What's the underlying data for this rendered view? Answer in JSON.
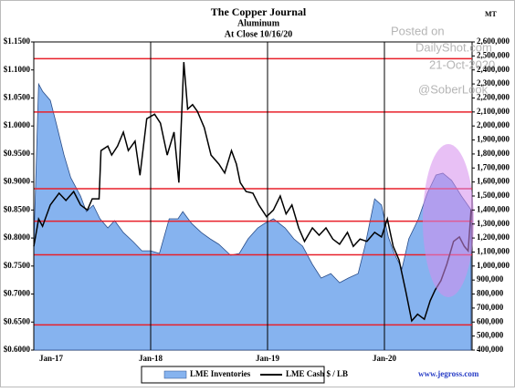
{
  "chart_data": {
    "type": "line",
    "title": "The Copper Journal",
    "subtitle": "Aluminum",
    "date_note": "At Close 10/16/20",
    "y2_label": "MT",
    "annotations": [
      "Posted on",
      "DailyShot.com",
      "21-Oct-2020",
      "@SoberLook",
      "www.jegross.com"
    ],
    "xlim": [
      0,
      45
    ],
    "xticks": [
      {
        "value": 0,
        "label": "Jan-17"
      },
      {
        "value": 12,
        "label": "Jan-18"
      },
      {
        "value": 24,
        "label": "Jan-19"
      },
      {
        "value": 36,
        "label": "Jan-20"
      }
    ],
    "ylim": [
      0.6,
      1.15
    ],
    "yticks": [
      {
        "value": 0.6,
        "label": "$0.6000"
      },
      {
        "value": 0.65,
        "label": "$0.6500"
      },
      {
        "value": 0.7,
        "label": "$0.7000"
      },
      {
        "value": 0.75,
        "label": "$0.7500"
      },
      {
        "value": 0.8,
        "label": "$0.8000"
      },
      {
        "value": 0.85,
        "label": "$0.8500"
      },
      {
        "value": 0.9,
        "label": "$0.9000"
      },
      {
        "value": 0.95,
        "label": "$0.9500"
      },
      {
        "value": 1.0,
        "label": "$1.0000"
      },
      {
        "value": 1.05,
        "label": "$1.0500"
      },
      {
        "value": 1.1,
        "label": "$1.1000"
      },
      {
        "value": 1.15,
        "label": "$1.1500"
      }
    ],
    "y2lim": [
      400000,
      2600000
    ],
    "y2ticks": [
      {
        "value": 400000,
        "label": "400,000"
      },
      {
        "value": 500000,
        "label": "500,000"
      },
      {
        "value": 600000,
        "label": "600,000"
      },
      {
        "value": 700000,
        "label": "700,000"
      },
      {
        "value": 800000,
        "label": "800,000"
      },
      {
        "value": 900000,
        "label": "900,000"
      },
      {
        "value": 1000000,
        "label": "1,000,000"
      },
      {
        "value": 1100000,
        "label": "1,100,000"
      },
      {
        "value": 1200000,
        "label": "1,200,000"
      },
      {
        "value": 1300000,
        "label": "1,300,000"
      },
      {
        "value": 1400000,
        "label": "1,400,000"
      },
      {
        "value": 1500000,
        "label": "1,500,000"
      },
      {
        "value": 1600000,
        "label": "1,600,000"
      },
      {
        "value": 1700000,
        "label": "1,700,000"
      },
      {
        "value": 1800000,
        "label": "1,800,000"
      },
      {
        "value": 1900000,
        "label": "1,900,000"
      },
      {
        "value": 2000000,
        "label": "2,000,000"
      },
      {
        "value": 2100000,
        "label": "2,100,000"
      },
      {
        "value": 2200000,
        "label": "2,200,000"
      },
      {
        "value": 2300000,
        "label": "2,300,000"
      },
      {
        "value": 2400000,
        "label": "2,400,000"
      },
      {
        "value": 2500000,
        "label": "2,500,000"
      },
      {
        "value": 2600000,
        "label": "2,600,000"
      }
    ],
    "reference_lines": [
      1.12,
      1.025,
      0.888,
      0.83,
      0.77,
      0.645
    ],
    "reference_color": "#e8202a",
    "legend": "bottom",
    "series": [
      {
        "name": "LME Inventories",
        "kind": "area",
        "axis": "y2",
        "color": "#86b3ef",
        "x": [
          0,
          0.5,
          0.9,
          1.7,
          2.3,
          3.1,
          3.8,
          4.8,
          5.4,
          6.1,
          6.8,
          7.6,
          8.3,
          9.2,
          10.2,
          11.1,
          12.0,
          12.9,
          13.9,
          14.8,
          15.3,
          16.2,
          17.2,
          18.1,
          19.0,
          20.2,
          21.1,
          22.0,
          23.0,
          23.7,
          24.6,
          25.8,
          26.7,
          27.6,
          28.6,
          29.5,
          30.5,
          31.4,
          32.3,
          33.3,
          34.0,
          35.0,
          35.7,
          36.4,
          37.0,
          37.8,
          38.5,
          39.5,
          40.4,
          41.3,
          42.0,
          42.9,
          43.9,
          44.9
        ],
        "values": [
          1142000,
          2300000,
          2248000,
          2183000,
          2021000,
          1793000,
          1630000,
          1500000,
          1389000,
          1435000,
          1337000,
          1272000,
          1324000,
          1239000,
          1174000,
          1109000,
          1109000,
          1090000,
          1337000,
          1337000,
          1389000,
          1304000,
          1239000,
          1194000,
          1155000,
          1077000,
          1090000,
          1194000,
          1272000,
          1304000,
          1337000,
          1272000,
          1194000,
          1142000,
          1012000,
          914000,
          946000,
          881000,
          914000,
          946000,
          1142000,
          1480000,
          1435000,
          1207000,
          1090000,
          979000,
          1194000,
          1337000,
          1519000,
          1650000,
          1663000,
          1611000,
          1500000,
          1402000
        ]
      },
      {
        "name": "LME Cash $ / LB",
        "kind": "line",
        "axis": "y",
        "color": "#000000",
        "x": [
          0,
          0.5,
          0.9,
          1.7,
          2.6,
          3.3,
          4.1,
          4.8,
          5.5,
          6.0,
          6.7,
          6.9,
          7.6,
          8.0,
          8.6,
          9.2,
          9.7,
          10.4,
          10.9,
          11.6,
          12.4,
          13.0,
          13.7,
          14.4,
          14.9,
          15.4,
          15.8,
          16.3,
          16.8,
          17.5,
          18.2,
          19.0,
          19.6,
          20.3,
          20.8,
          21.2,
          21.8,
          22.5,
          23.1,
          23.9,
          24.6,
          25.3,
          25.9,
          26.5,
          27.2,
          27.8,
          28.6,
          29.3,
          30.0,
          30.7,
          31.4,
          32.2,
          32.8,
          33.5,
          34.2,
          35.0,
          35.7,
          36.3,
          36.9,
          37.5,
          38.2,
          38.8,
          39.4,
          40.1,
          40.7,
          41.2,
          41.8,
          42.4,
          43.1,
          43.7,
          44.2,
          44.6,
          44.9
        ],
        "values": [
          0.785,
          0.834,
          0.821,
          0.859,
          0.88,
          0.867,
          0.883,
          0.859,
          0.85,
          0.87,
          0.87,
          0.956,
          0.964,
          0.948,
          0.964,
          0.989,
          0.956,
          0.973,
          0.912,
          1.013,
          1.021,
          1.005,
          0.948,
          0.989,
          0.899,
          1.114,
          1.03,
          1.038,
          1.026,
          0.997,
          0.948,
          0.932,
          0.916,
          0.956,
          0.932,
          0.899,
          0.883,
          0.88,
          0.859,
          0.838,
          0.85,
          0.875,
          0.843,
          0.859,
          0.818,
          0.794,
          0.818,
          0.805,
          0.818,
          0.798,
          0.789,
          0.81,
          0.785,
          0.798,
          0.794,
          0.81,
          0.802,
          0.834,
          0.785,
          0.761,
          0.704,
          0.652,
          0.664,
          0.655,
          0.688,
          0.707,
          0.724,
          0.753,
          0.794,
          0.802,
          0.785,
          0.777,
          0.851
        ]
      }
    ]
  }
}
